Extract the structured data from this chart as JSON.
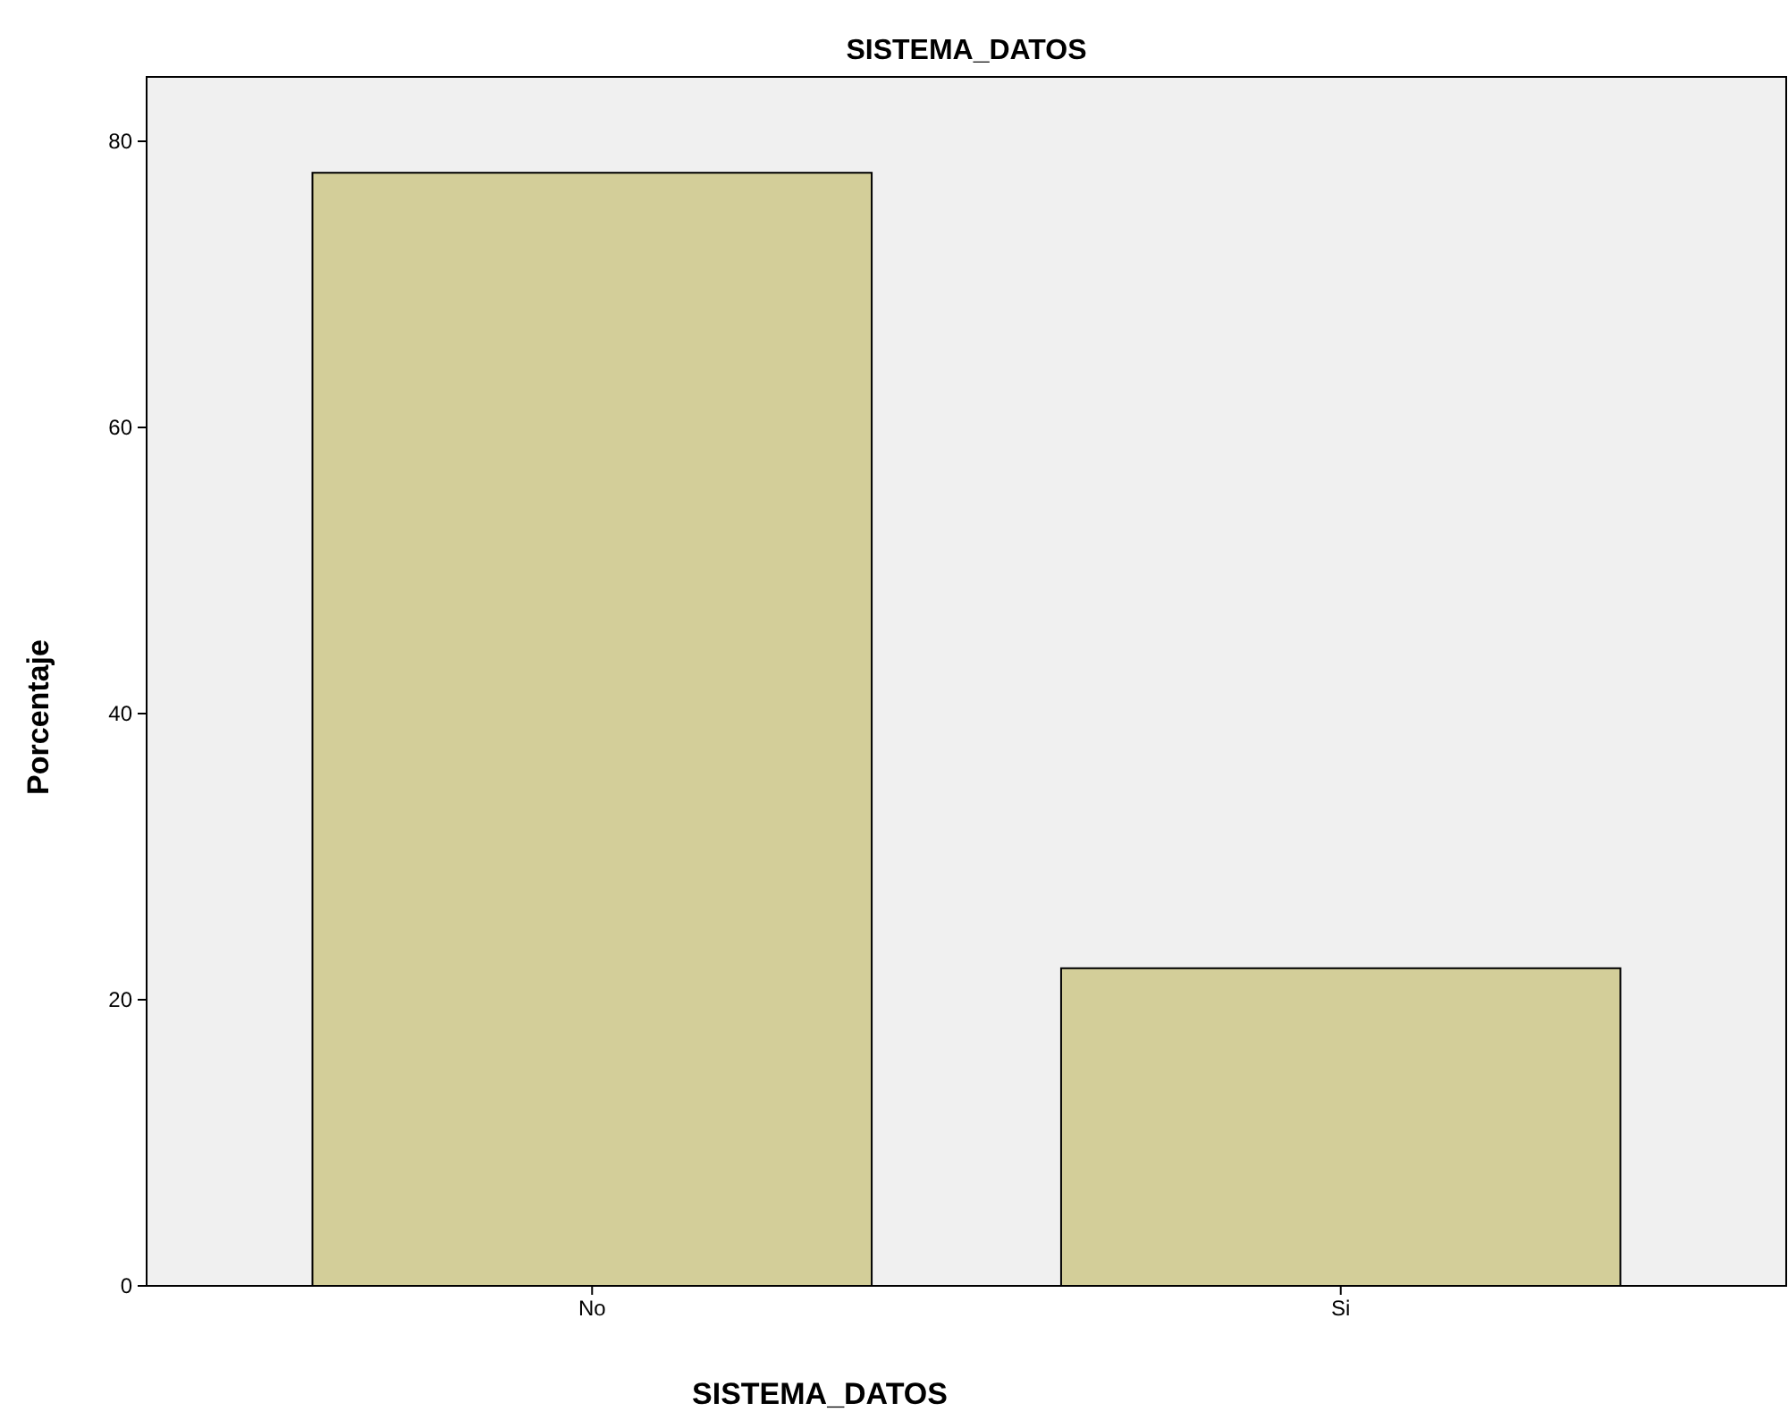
{
  "chart_data": {
    "type": "bar",
    "title": "SISTEMA_DATOS",
    "xlabel": "SISTEMA_DATOS",
    "ylabel": "Porcentaje",
    "categories": [
      "No",
      "Si"
    ],
    "values": [
      77.8,
      22.2
    ],
    "color": "#d3ce99",
    "ylim": [
      0,
      84.5
    ],
    "yticks": [
      0,
      20,
      40,
      60,
      80
    ],
    "grid": false
  }
}
